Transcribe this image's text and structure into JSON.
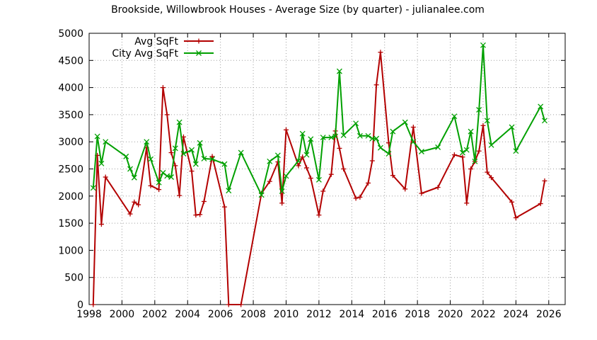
{
  "chart_data": {
    "type": "line",
    "title": "Brookside, Willowbrook Houses - Average Size (by quarter) - julianalee.com",
    "xlabel": "",
    "ylabel": "",
    "xlim": [
      1998,
      2027
    ],
    "ylim": [
      0,
      5000
    ],
    "xticks": [
      "1998",
      "2000",
      "2002",
      "2004",
      "2006",
      "2008",
      "2010",
      "2012",
      "2014",
      "2016",
      "2018",
      "2020",
      "2022",
      "2024",
      "2026"
    ],
    "yticks": [
      "0",
      "500",
      "1000",
      "1500",
      "2000",
      "2500",
      "3000",
      "3500",
      "4000",
      "4500",
      "5000"
    ],
    "grid": true,
    "legend_position": "top-left",
    "series": [
      {
        "name": "Avg SqFt",
        "color": "#b30000",
        "marker": "plus",
        "points": [
          [
            1998.25,
            0
          ],
          [
            1998.5,
            2750
          ],
          [
            1998.75,
            1480
          ],
          [
            1999.0,
            2350
          ],
          [
            2000.5,
            1670
          ],
          [
            2000.75,
            1890
          ],
          [
            2001.0,
            1840
          ],
          [
            2001.5,
            2890
          ],
          [
            2001.75,
            2190
          ],
          [
            2002.25,
            2120
          ],
          [
            2002.5,
            4000
          ],
          [
            2002.75,
            3500
          ],
          [
            2003.0,
            2800
          ],
          [
            2003.25,
            2560
          ],
          [
            2003.5,
            2010
          ],
          [
            2003.75,
            3090
          ],
          [
            2004.25,
            2460
          ],
          [
            2004.5,
            1650
          ],
          [
            2004.75,
            1660
          ],
          [
            2005.0,
            1900
          ],
          [
            2005.5,
            2730
          ],
          [
            2006.25,
            1800
          ],
          [
            2006.5,
            0
          ],
          [
            2007.25,
            0
          ],
          [
            2008.5,
            2050
          ],
          [
            2009.0,
            2270
          ],
          [
            2009.5,
            2630
          ],
          [
            2009.75,
            1870
          ],
          [
            2010.0,
            3220
          ],
          [
            2010.75,
            2560
          ],
          [
            2011.0,
            2720
          ],
          [
            2011.25,
            2520
          ],
          [
            2011.5,
            2330
          ],
          [
            2012.0,
            1650
          ],
          [
            2012.25,
            2090
          ],
          [
            2012.75,
            2400
          ],
          [
            2013.0,
            3200
          ],
          [
            2013.25,
            2880
          ],
          [
            2013.5,
            2500
          ],
          [
            2014.25,
            1960
          ],
          [
            2014.5,
            1980
          ],
          [
            2015.0,
            2240
          ],
          [
            2015.25,
            2650
          ],
          [
            2015.5,
            4050
          ],
          [
            2015.75,
            4650
          ],
          [
            2016.25,
            2980
          ],
          [
            2016.5,
            2380
          ],
          [
            2017.25,
            2130
          ],
          [
            2017.75,
            3270
          ],
          [
            2018.25,
            2050
          ],
          [
            2019.25,
            2160
          ],
          [
            2020.25,
            2760
          ],
          [
            2020.75,
            2720
          ],
          [
            2021.0,
            1870
          ],
          [
            2021.25,
            2500
          ],
          [
            2021.5,
            2640
          ],
          [
            2021.75,
            2830
          ],
          [
            2022.0,
            3300
          ],
          [
            2022.25,
            2440
          ],
          [
            2022.5,
            2340
          ],
          [
            2023.75,
            1890
          ],
          [
            2024.0,
            1600
          ],
          [
            2025.5,
            1860
          ],
          [
            2025.75,
            2280
          ]
        ]
      },
      {
        "name": "City Avg SqFt",
        "color": "#00a000",
        "marker": "cross",
        "points": [
          [
            1998.25,
            2150
          ],
          [
            1998.5,
            3100
          ],
          [
            1998.75,
            2600
          ],
          [
            1999.0,
            3000
          ],
          [
            2000.25,
            2730
          ],
          [
            2000.5,
            2500
          ],
          [
            2000.75,
            2340
          ],
          [
            2001.5,
            3000
          ],
          [
            2001.75,
            2680
          ],
          [
            2002.25,
            2250
          ],
          [
            2002.5,
            2430
          ],
          [
            2002.75,
            2370
          ],
          [
            2003.0,
            2350
          ],
          [
            2003.25,
            2880
          ],
          [
            2003.5,
            3360
          ],
          [
            2003.75,
            2780
          ],
          [
            2004.25,
            2850
          ],
          [
            2004.5,
            2590
          ],
          [
            2004.75,
            2980
          ],
          [
            2005.0,
            2690
          ],
          [
            2005.5,
            2680
          ],
          [
            2006.25,
            2590
          ],
          [
            2006.5,
            2100
          ],
          [
            2007.25,
            2800
          ],
          [
            2008.5,
            2020
          ],
          [
            2009.0,
            2640
          ],
          [
            2009.5,
            2750
          ],
          [
            2009.75,
            2090
          ],
          [
            2010.0,
            2370
          ],
          [
            2010.75,
            2650
          ],
          [
            2011.0,
            3150
          ],
          [
            2011.25,
            2760
          ],
          [
            2011.5,
            3050
          ],
          [
            2012.0,
            2300
          ],
          [
            2012.25,
            3080
          ],
          [
            2012.75,
            3080
          ],
          [
            2013.0,
            3100
          ],
          [
            2013.25,
            4300
          ],
          [
            2013.5,
            3120
          ],
          [
            2014.25,
            3340
          ],
          [
            2014.5,
            3110
          ],
          [
            2015.0,
            3110
          ],
          [
            2015.25,
            3060
          ],
          [
            2015.5,
            3060
          ],
          [
            2015.75,
            2890
          ],
          [
            2016.25,
            2780
          ],
          [
            2016.5,
            3190
          ],
          [
            2017.25,
            3360
          ],
          [
            2017.75,
            3000
          ],
          [
            2018.25,
            2820
          ],
          [
            2019.25,
            2900
          ],
          [
            2020.25,
            3470
          ],
          [
            2020.75,
            2800
          ],
          [
            2021.0,
            2850
          ],
          [
            2021.25,
            3190
          ],
          [
            2021.5,
            2640
          ],
          [
            2021.75,
            3590
          ],
          [
            2022.0,
            4780
          ],
          [
            2022.25,
            3390
          ],
          [
            2022.5,
            2940
          ],
          [
            2023.75,
            3270
          ],
          [
            2024.0,
            2830
          ],
          [
            2025.5,
            3650
          ],
          [
            2025.75,
            3390
          ]
        ]
      }
    ]
  }
}
